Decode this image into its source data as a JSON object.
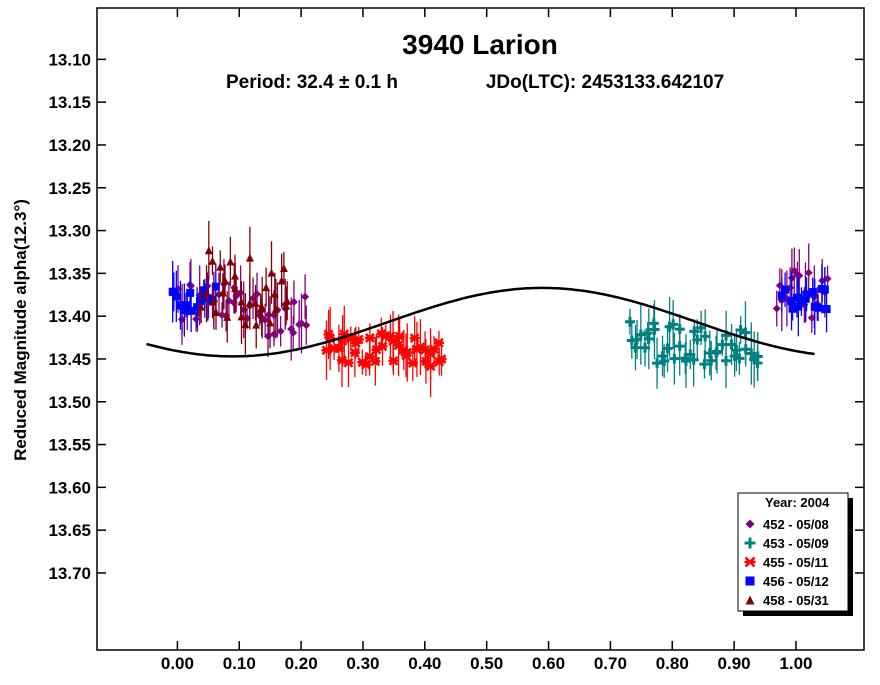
{
  "chart_data": {
    "type": "scatter",
    "title": "3940 Larion",
    "subtitle_period": "Period: 32.4 ± 0.1 h",
    "subtitle_epoch": "JDo(LTC): 2453133.642107",
    "ylabel": "Reduced Magnitude alpha(12.3°)",
    "xlabel": "",
    "xlim": [
      -0.13,
      1.11
    ],
    "ylim": [
      13.04,
      13.79
    ],
    "y_inverted": true,
    "x_ticks": [
      "0.00",
      "0.10",
      "0.20",
      "0.30",
      "0.40",
      "0.50",
      "0.60",
      "0.70",
      "0.80",
      "0.90",
      "1.00"
    ],
    "y_ticks": [
      "13.10",
      "13.15",
      "13.20",
      "13.25",
      "13.30",
      "13.35",
      "13.40",
      "13.45",
      "13.50",
      "13.55",
      "13.60",
      "13.65",
      "13.70"
    ],
    "grid": false,
    "legend_position": "bottom-right",
    "legend_title": "Year: 2004",
    "fit_curve": {
      "name": "",
      "mean": 13.407,
      "amplitude": 0.04,
      "peak_phase": 0.59,
      "harmonic": 2,
      "x_range": [
        -0.05,
        1.03
      ],
      "color": "#000000"
    },
    "series": [
      {
        "name": "452 - 05/08",
        "marker": "diamond",
        "color": "#800080",
        "segments": [
          [
            0.0,
            0.21,
            13.38,
            13.4,
            0.06
          ],
          [
            0.97,
            1.05,
            13.38,
            13.37,
            0.06
          ]
        ]
      },
      {
        "name": "453 - 05/09",
        "marker": "plus",
        "color": "#008080",
        "segments": [
          [
            0.73,
            0.94,
            13.43,
            13.44,
            0.05
          ]
        ]
      },
      {
        "name": "455 - 05/11",
        "marker": "asterisk",
        "color": "#ff0000",
        "segments": [
          [
            0.24,
            0.43,
            13.44,
            13.44,
            0.04
          ]
        ]
      },
      {
        "name": "456 - 05/12",
        "marker": "square",
        "color": "#0000ff",
        "segments": [
          [
            -0.01,
            0.06,
            13.38,
            13.38,
            0.03
          ],
          [
            0.98,
            1.05,
            13.38,
            13.38,
            0.03
          ]
        ]
      },
      {
        "name": "458 - 05/31",
        "marker": "triangle",
        "color": "#800000",
        "segments": [
          [
            0.04,
            0.18,
            13.36,
            13.38,
            0.08
          ]
        ]
      }
    ]
  }
}
